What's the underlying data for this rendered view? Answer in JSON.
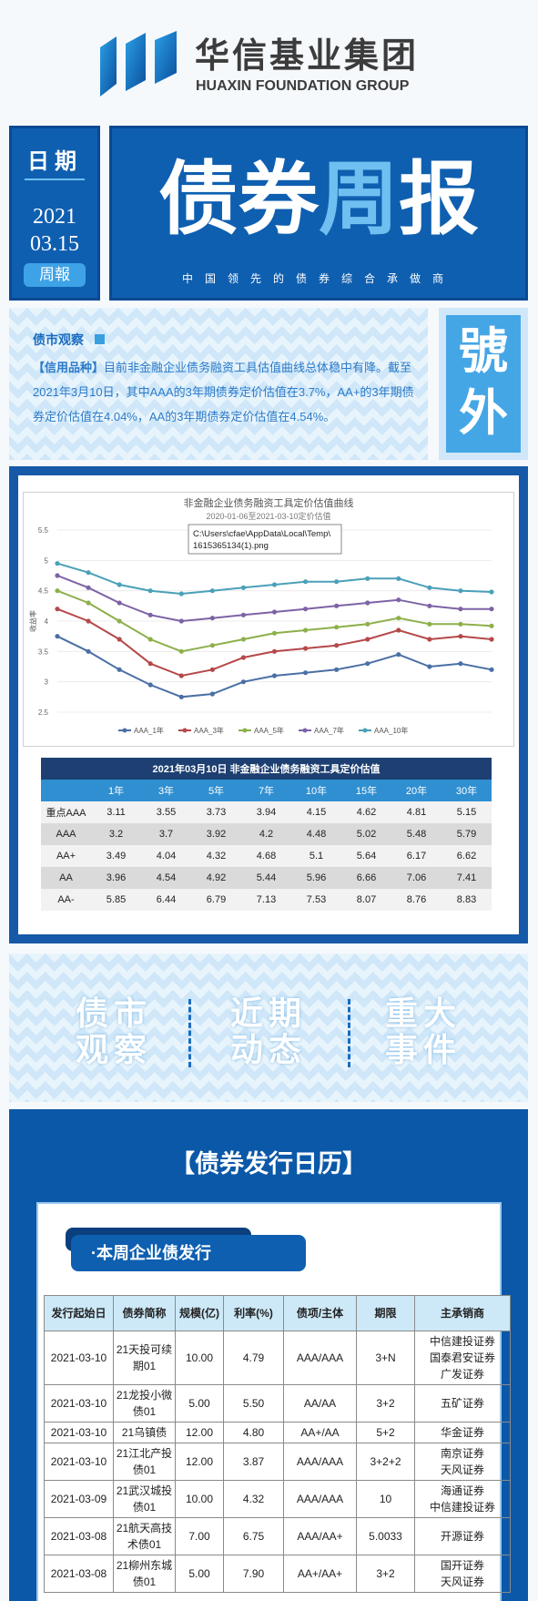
{
  "header": {
    "company": "华信基业集团",
    "company_en": "HUAXIN FOUNDATION GROUP"
  },
  "issue": {
    "date_label": "日期",
    "year": "2021",
    "date": "03.15",
    "tag": "周報",
    "title_a": "债券",
    "title_b": "周",
    "title_c": "报",
    "slogan": "中国领先的债券综合承做商"
  },
  "market_watch": {
    "heading": "债市观察",
    "label": "【信用品种】",
    "text": "目前非金融企业债务融资工具估值曲线总体稳中有降。截至2021年3月10日，其中AAA的3年期债券定价估值在3.7%，AA+的3年期债券定价估值在4.04%，AA的3年期债券定价估值在4.54%。",
    "side": [
      "號",
      "外"
    ]
  },
  "chart_data": {
    "type": "line",
    "title": "非金融企业债务融资工具定价估值曲线",
    "subtitle": "2020-01-06至2021-03-10定价估值",
    "y_label": "收益率",
    "categories": [
      null,
      null,
      null,
      null,
      null,
      null,
      null,
      null,
      null,
      null,
      null,
      null,
      null,
      null,
      null
    ],
    "series": [
      {
        "name": "AAA_1年",
        "color": "#4a6fa5",
        "values": [
          3.75,
          3.5,
          3.2,
          2.95,
          2.75,
          2.8,
          3.0,
          3.1,
          3.15,
          3.2,
          3.3,
          3.45,
          3.25,
          3.3,
          3.2
        ]
      },
      {
        "name": "AAA_3年",
        "color": "#b5484a",
        "values": [
          4.2,
          4.0,
          3.7,
          3.3,
          3.1,
          3.2,
          3.4,
          3.5,
          3.55,
          3.6,
          3.7,
          3.85,
          3.7,
          3.75,
          3.7
        ]
      },
      {
        "name": "AAA_5年",
        "color": "#8db04a",
        "values": [
          4.5,
          4.3,
          4.0,
          3.7,
          3.5,
          3.6,
          3.7,
          3.8,
          3.85,
          3.9,
          3.95,
          4.05,
          3.95,
          3.95,
          3.92
        ]
      },
      {
        "name": "AAA_7年",
        "color": "#7d63a5",
        "values": [
          4.75,
          4.55,
          4.3,
          4.1,
          4.0,
          4.05,
          4.1,
          4.15,
          4.2,
          4.25,
          4.3,
          4.35,
          4.25,
          4.2,
          4.2
        ]
      },
      {
        "name": "AAA_10年",
        "color": "#4aa0b8",
        "values": [
          4.95,
          4.8,
          4.6,
          4.5,
          4.45,
          4.5,
          4.55,
          4.6,
          4.65,
          4.65,
          4.7,
          4.7,
          4.55,
          4.5,
          4.48
        ]
      }
    ],
    "ylim": [
      2.5,
      5.5
    ],
    "yticks": [
      2.5,
      3,
      3.5,
      4,
      4.5,
      5,
      5.5
    ],
    "grid": true,
    "legend": "bottom",
    "annotation": [
      "C:\\Users\\cfae\\AppData\\Local\\Temp\\",
      "1615365134(1).png"
    ]
  },
  "valuation_table": {
    "title": "2021年03月10日  非金融企业债务融资工具定价估值",
    "columns": [
      "1年",
      "3年",
      "5年",
      "7年",
      "10年",
      "15年",
      "20年",
      "30年"
    ],
    "rows": [
      {
        "label": "重点AAA",
        "values": [
          3.11,
          3.55,
          3.73,
          3.94,
          4.15,
          4.62,
          4.81,
          5.15
        ]
      },
      {
        "label": "AAA",
        "values": [
          3.2,
          3.7,
          3.92,
          4.2,
          4.48,
          5.02,
          5.48,
          5.79
        ]
      },
      {
        "label": "AA+",
        "values": [
          3.49,
          4.04,
          4.32,
          4.68,
          5.1,
          5.64,
          6.17,
          6.62
        ]
      },
      {
        "label": "AA",
        "values": [
          3.96,
          4.54,
          4.92,
          5.44,
          5.96,
          6.66,
          7.06,
          7.41
        ]
      },
      {
        "label": "AA-",
        "values": [
          5.85,
          6.44,
          6.79,
          7.13,
          7.53,
          8.07,
          8.76,
          8.83
        ]
      }
    ]
  },
  "banner": [
    [
      "债市",
      "观察"
    ],
    [
      "近期",
      "动态"
    ],
    [
      "重大",
      "事件"
    ]
  ],
  "calendar": {
    "title": "【债券发行日历】",
    "subtitle": "·本周企业债发行",
    "columns": [
      "发行起始日",
      "债券简称",
      "规模(亿)",
      "利率(%)",
      "债项/主体",
      "期限",
      "主承销商"
    ],
    "rows": [
      [
        "2021-03-10",
        "21天投可续期01",
        "10.00",
        "4.79",
        "AAA/AAA",
        "3+N",
        [
          "中信建投证券",
          "国泰君安证券",
          "广发证券"
        ]
      ],
      [
        "2021-03-10",
        "21龙投小微债01",
        "5.00",
        "5.50",
        "AA/AA",
        "3+2",
        [
          "五矿证券"
        ]
      ],
      [
        "2021-03-10",
        "21乌镇债",
        "12.00",
        "4.80",
        "AA+/AA",
        "5+2",
        [
          "华金证券"
        ]
      ],
      [
        "2021-03-10",
        "21江北产投债01",
        "12.00",
        "3.87",
        "AAA/AAA",
        "3+2+2",
        [
          "南京证券",
          "天风证券"
        ]
      ],
      [
        "2021-03-09",
        "21武汉城投债01",
        "10.00",
        "4.32",
        "AAA/AAA",
        "10",
        [
          "海通证券",
          "中信建投证券"
        ]
      ],
      [
        "2021-03-08",
        "21航天高技术债01",
        "7.00",
        "6.75",
        "AAA/AA+",
        "5.0033",
        [
          "开源证券"
        ]
      ],
      [
        "2021-03-08",
        "21柳州东城债01",
        "5.00",
        "7.90",
        "AA+/AA+",
        "3+2",
        [
          "国开证券",
          "天风证券"
        ]
      ]
    ]
  }
}
